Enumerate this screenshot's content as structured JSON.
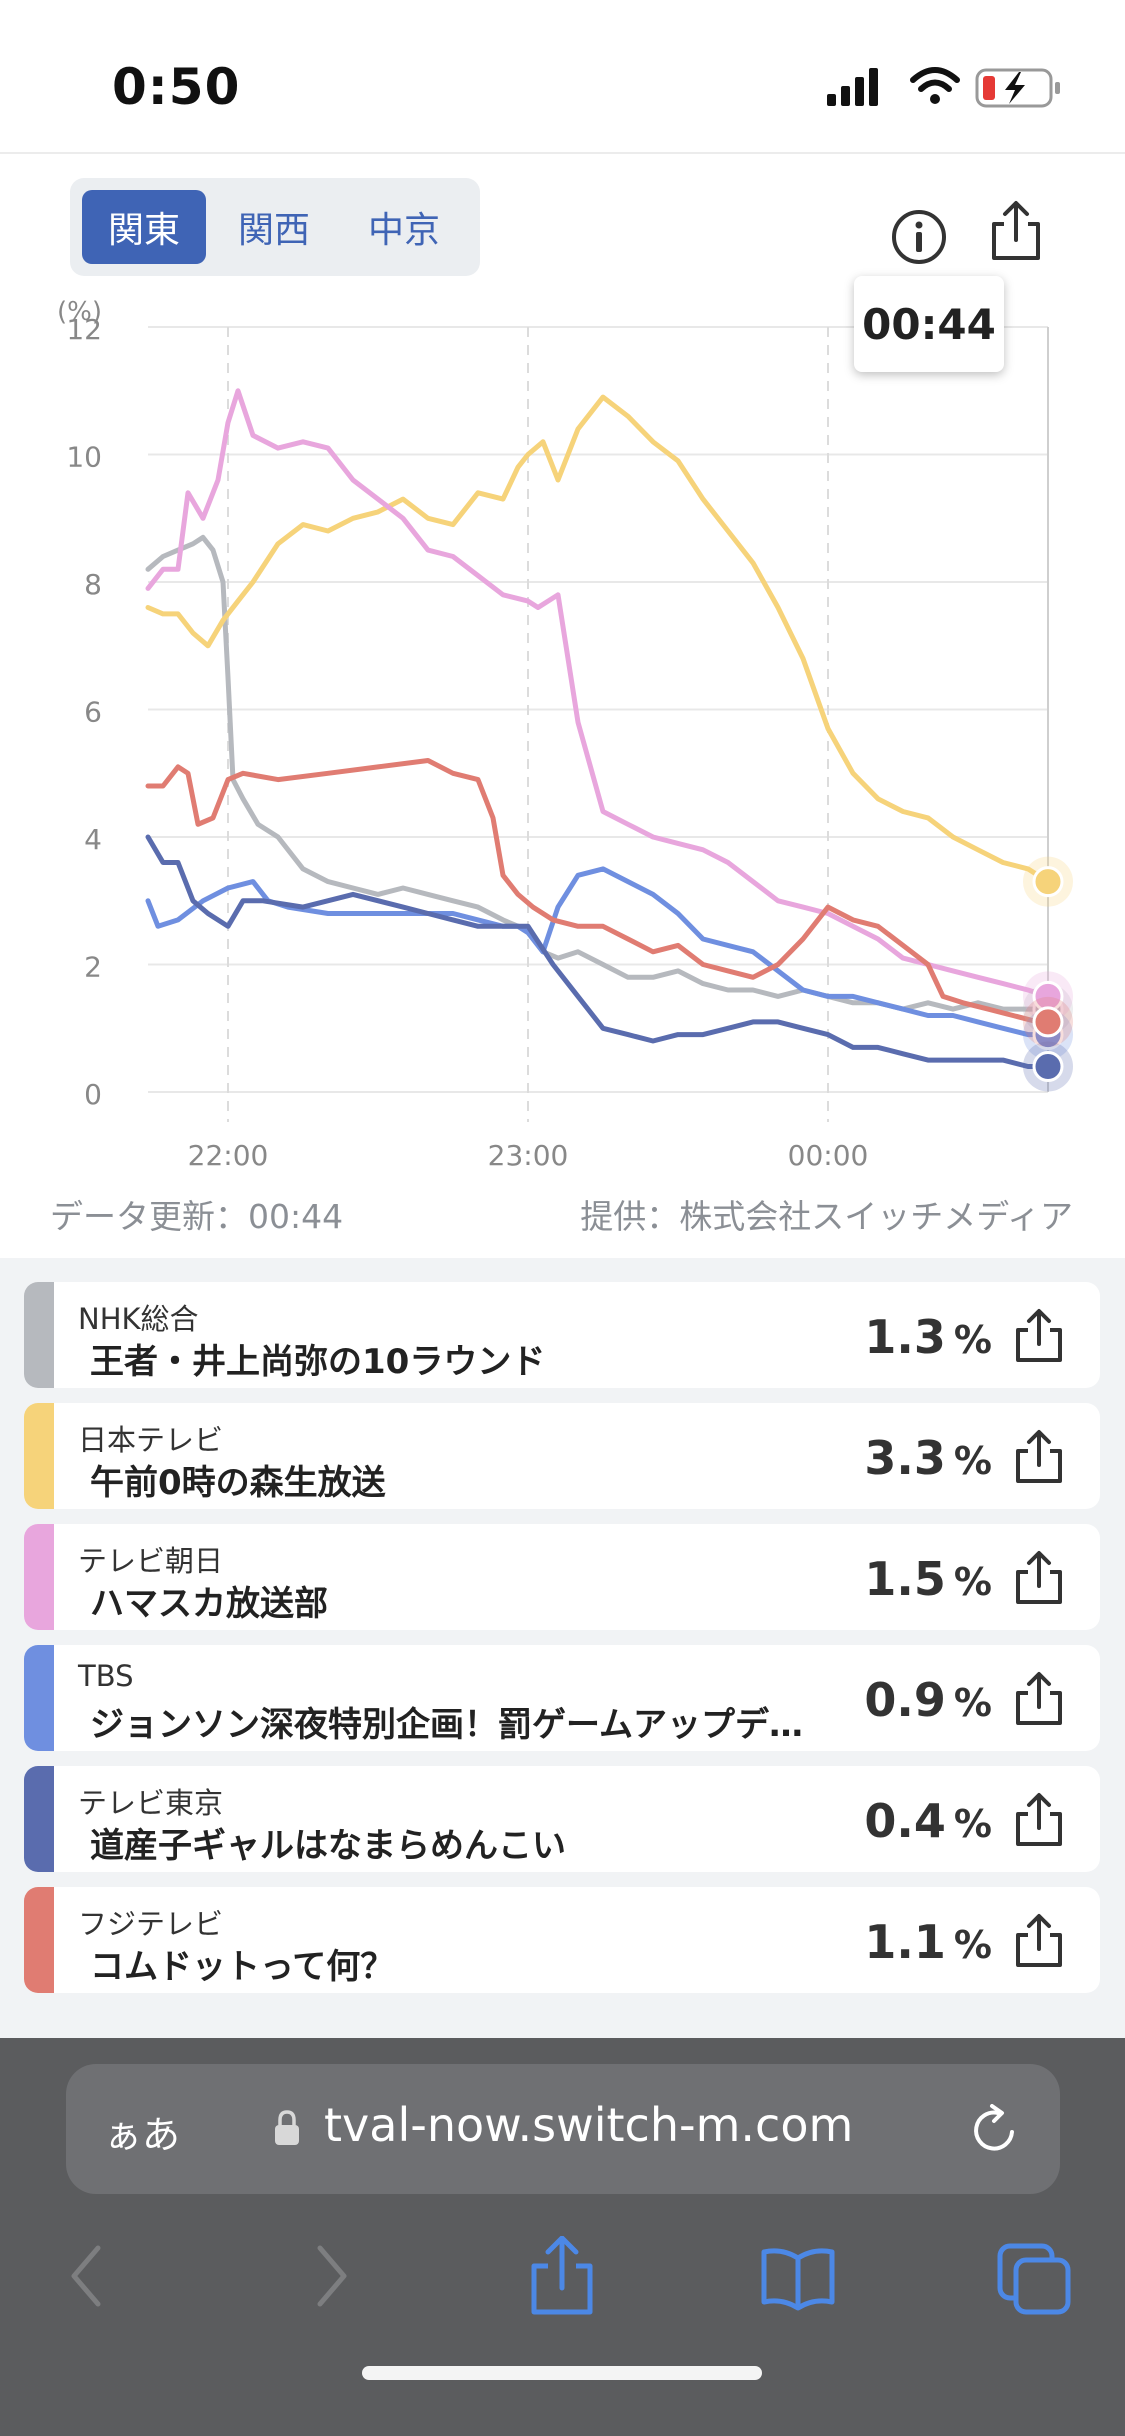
{
  "status_bar": {
    "time": "0:50"
  },
  "region_tabs": [
    {
      "label": "関東",
      "active": true
    },
    {
      "label": "関西",
      "active": false
    },
    {
      "label": "中京",
      "active": false
    }
  ],
  "chart_badge": "00:44",
  "chart_data": {
    "type": "line",
    "ylabel": "(%)",
    "ylim": [
      0,
      12
    ],
    "yticks": [
      "0",
      "2",
      "4",
      "6",
      "8",
      "10",
      "12"
    ],
    "xticks": [
      {
        "label": "22:00",
        "value": 60
      },
      {
        "label": "23:00",
        "value": 120
      },
      {
        "label": "00:00",
        "value": 180
      }
    ],
    "xrange": [
      44,
      224
    ],
    "cursor_x": 224,
    "grid": true,
    "series": [
      {
        "name": "NHK総合",
        "color": "#b6b9be",
        "points": [
          [
            44,
            8.2
          ],
          [
            47,
            8.4
          ],
          [
            50,
            8.5
          ],
          [
            53,
            8.6
          ],
          [
            55,
            8.7
          ],
          [
            57,
            8.5
          ],
          [
            59,
            8.0
          ],
          [
            60,
            6.5
          ],
          [
            61,
            4.9
          ],
          [
            63,
            4.6
          ],
          [
            66,
            4.2
          ],
          [
            70,
            4.0
          ],
          [
            75,
            3.5
          ],
          [
            80,
            3.3
          ],
          [
            85,
            3.2
          ],
          [
            90,
            3.1
          ],
          [
            95,
            3.2
          ],
          [
            100,
            3.1
          ],
          [
            105,
            3.0
          ],
          [
            110,
            2.9
          ],
          [
            115,
            2.7
          ],
          [
            118,
            2.6
          ],
          [
            120,
            2.5
          ],
          [
            123,
            2.2
          ],
          [
            126,
            2.1
          ],
          [
            130,
            2.2
          ],
          [
            135,
            2.0
          ],
          [
            140,
            1.8
          ],
          [
            145,
            1.8
          ],
          [
            150,
            1.9
          ],
          [
            155,
            1.7
          ],
          [
            160,
            1.6
          ],
          [
            165,
            1.6
          ],
          [
            170,
            1.5
          ],
          [
            175,
            1.6
          ],
          [
            180,
            1.5
          ],
          [
            185,
            1.4
          ],
          [
            190,
            1.4
          ],
          [
            195,
            1.3
          ],
          [
            200,
            1.4
          ],
          [
            205,
            1.3
          ],
          [
            210,
            1.4
          ],
          [
            215,
            1.3
          ],
          [
            220,
            1.3
          ],
          [
            224,
            1.3
          ]
        ]
      },
      {
        "name": "日本テレビ",
        "color": "#f6d37a",
        "points": [
          [
            44,
            7.6
          ],
          [
            47,
            7.5
          ],
          [
            50,
            7.5
          ],
          [
            53,
            7.2
          ],
          [
            56,
            7.0
          ],
          [
            59,
            7.4
          ],
          [
            62,
            7.7
          ],
          [
            65,
            8.0
          ],
          [
            70,
            8.6
          ],
          [
            75,
            8.9
          ],
          [
            80,
            8.8
          ],
          [
            85,
            9.0
          ],
          [
            90,
            9.1
          ],
          [
            95,
            9.3
          ],
          [
            100,
            9.0
          ],
          [
            105,
            8.9
          ],
          [
            110,
            9.4
          ],
          [
            115,
            9.3
          ],
          [
            118,
            9.8
          ],
          [
            120,
            10.0
          ],
          [
            123,
            10.2
          ],
          [
            126,
            9.6
          ],
          [
            130,
            10.4
          ],
          [
            135,
            10.9
          ],
          [
            140,
            10.6
          ],
          [
            145,
            10.2
          ],
          [
            150,
            9.9
          ],
          [
            155,
            9.3
          ],
          [
            160,
            8.8
          ],
          [
            165,
            8.3
          ],
          [
            170,
            7.6
          ],
          [
            175,
            6.8
          ],
          [
            180,
            5.7
          ],
          [
            185,
            5.0
          ],
          [
            190,
            4.6
          ],
          [
            195,
            4.4
          ],
          [
            200,
            4.3
          ],
          [
            205,
            4.0
          ],
          [
            210,
            3.8
          ],
          [
            215,
            3.6
          ],
          [
            220,
            3.5
          ],
          [
            224,
            3.3
          ]
        ]
      },
      {
        "name": "テレビ朝日",
        "color": "#e8a6dd",
        "points": [
          [
            44,
            7.9
          ],
          [
            47,
            8.2
          ],
          [
            50,
            8.2
          ],
          [
            52,
            9.4
          ],
          [
            55,
            9.0
          ],
          [
            58,
            9.6
          ],
          [
            60,
            10.5
          ],
          [
            62,
            11.0
          ],
          [
            65,
            10.3
          ],
          [
            70,
            10.1
          ],
          [
            75,
            10.2
          ],
          [
            80,
            10.1
          ],
          [
            85,
            9.6
          ],
          [
            90,
            9.3
          ],
          [
            95,
            9.0
          ],
          [
            100,
            8.5
          ],
          [
            105,
            8.4
          ],
          [
            110,
            8.1
          ],
          [
            115,
            7.8
          ],
          [
            120,
            7.7
          ],
          [
            122,
            7.6
          ],
          [
            126,
            7.8
          ],
          [
            130,
            5.8
          ],
          [
            135,
            4.4
          ],
          [
            140,
            4.2
          ],
          [
            145,
            4.0
          ],
          [
            150,
            3.9
          ],
          [
            155,
            3.8
          ],
          [
            160,
            3.6
          ],
          [
            165,
            3.3
          ],
          [
            170,
            3.0
          ],
          [
            175,
            2.9
          ],
          [
            180,
            2.8
          ],
          [
            185,
            2.6
          ],
          [
            190,
            2.4
          ],
          [
            195,
            2.1
          ],
          [
            200,
            2.0
          ],
          [
            205,
            1.9
          ],
          [
            210,
            1.8
          ],
          [
            215,
            1.7
          ],
          [
            220,
            1.6
          ],
          [
            224,
            1.5
          ]
        ]
      },
      {
        "name": "TBS",
        "color": "#6f8fe0",
        "points": [
          [
            44,
            3.0
          ],
          [
            46,
            2.6
          ],
          [
            50,
            2.7
          ],
          [
            55,
            3.0
          ],
          [
            60,
            3.2
          ],
          [
            65,
            3.3
          ],
          [
            68,
            3.0
          ],
          [
            72,
            2.9
          ],
          [
            80,
            2.8
          ],
          [
            90,
            2.8
          ],
          [
            100,
            2.8
          ],
          [
            105,
            2.8
          ],
          [
            110,
            2.7
          ],
          [
            115,
            2.6
          ],
          [
            118,
            2.6
          ],
          [
            120,
            2.5
          ],
          [
            123,
            2.2
          ],
          [
            126,
            2.9
          ],
          [
            130,
            3.4
          ],
          [
            135,
            3.5
          ],
          [
            140,
            3.3
          ],
          [
            145,
            3.1
          ],
          [
            150,
            2.8
          ],
          [
            155,
            2.4
          ],
          [
            160,
            2.3
          ],
          [
            165,
            2.2
          ],
          [
            170,
            1.9
          ],
          [
            175,
            1.6
          ],
          [
            180,
            1.5
          ],
          [
            185,
            1.5
          ],
          [
            190,
            1.4
          ],
          [
            195,
            1.3
          ],
          [
            200,
            1.2
          ],
          [
            205,
            1.2
          ],
          [
            210,
            1.1
          ],
          [
            215,
            1.0
          ],
          [
            220,
            0.9
          ],
          [
            224,
            0.9
          ]
        ]
      },
      {
        "name": "テレビ東京",
        "color": "#5a6cae",
        "points": [
          [
            44,
            4.0
          ],
          [
            47,
            3.6
          ],
          [
            50,
            3.6
          ],
          [
            53,
            3.0
          ],
          [
            56,
            2.8
          ],
          [
            60,
            2.6
          ],
          [
            63,
            3.0
          ],
          [
            67,
            3.0
          ],
          [
            75,
            2.9
          ],
          [
            85,
            3.1
          ],
          [
            95,
            2.9
          ],
          [
            100,
            2.8
          ],
          [
            105,
            2.7
          ],
          [
            110,
            2.6
          ],
          [
            115,
            2.6
          ],
          [
            120,
            2.6
          ],
          [
            125,
            2.0
          ],
          [
            130,
            1.5
          ],
          [
            135,
            1.0
          ],
          [
            140,
            0.9
          ],
          [
            145,
            0.8
          ],
          [
            150,
            0.9
          ],
          [
            155,
            0.9
          ],
          [
            160,
            1.0
          ],
          [
            165,
            1.1
          ],
          [
            170,
            1.1
          ],
          [
            175,
            1.0
          ],
          [
            180,
            0.9
          ],
          [
            185,
            0.7
          ],
          [
            190,
            0.7
          ],
          [
            195,
            0.6
          ],
          [
            200,
            0.5
          ],
          [
            205,
            0.5
          ],
          [
            210,
            0.5
          ],
          [
            215,
            0.5
          ],
          [
            220,
            0.4
          ],
          [
            224,
            0.4
          ]
        ]
      },
      {
        "name": "フジテレビ",
        "color": "#e07c72",
        "points": [
          [
            44,
            4.8
          ],
          [
            47,
            4.8
          ],
          [
            50,
            5.1
          ],
          [
            52,
            5.0
          ],
          [
            54,
            4.2
          ],
          [
            57,
            4.3
          ],
          [
            60,
            4.9
          ],
          [
            63,
            5.0
          ],
          [
            70,
            4.9
          ],
          [
            80,
            5.0
          ],
          [
            90,
            5.1
          ],
          [
            100,
            5.2
          ],
          [
            105,
            5.0
          ],
          [
            110,
            4.9
          ],
          [
            113,
            4.3
          ],
          [
            115,
            3.4
          ],
          [
            118,
            3.1
          ],
          [
            121,
            2.9
          ],
          [
            125,
            2.7
          ],
          [
            130,
            2.6
          ],
          [
            135,
            2.6
          ],
          [
            140,
            2.4
          ],
          [
            145,
            2.2
          ],
          [
            150,
            2.3
          ],
          [
            155,
            2.0
          ],
          [
            160,
            1.9
          ],
          [
            165,
            1.8
          ],
          [
            170,
            2.0
          ],
          [
            175,
            2.4
          ],
          [
            180,
            2.9
          ],
          [
            185,
            2.7
          ],
          [
            190,
            2.6
          ],
          [
            195,
            2.3
          ],
          [
            200,
            2.0
          ],
          [
            203,
            1.5
          ],
          [
            207,
            1.4
          ],
          [
            212,
            1.3
          ],
          [
            217,
            1.2
          ],
          [
            222,
            1.1
          ],
          [
            224,
            1.1
          ]
        ]
      }
    ]
  },
  "footer": {
    "updated": "データ更新：00:44",
    "provider": "提供：株式会社スイッチメディア"
  },
  "channels": [
    {
      "name": "NHK総合",
      "program": "王者・井上尚弥の10ラウンド",
      "rating": "1.3",
      "unit": "%",
      "color": "#b6b9be"
    },
    {
      "name": "日本テレビ",
      "program": "午前0時の森生放送",
      "rating": "3.3",
      "unit": "%",
      "color": "#f6d37a"
    },
    {
      "name": "テレビ朝日",
      "program": "ハマスカ放送部",
      "rating": "1.5",
      "unit": "%",
      "color": "#e8a6dd"
    },
    {
      "name": "TBS",
      "program": "ジョンソン深夜特別企画！罰ゲームアップデ…",
      "rating": "0.9",
      "unit": "%",
      "color": "#6f8fe0"
    },
    {
      "name": "テレビ東京",
      "program": "道産子ギャルはなまらめんこい",
      "rating": "0.4",
      "unit": "%",
      "color": "#5a6cae"
    },
    {
      "name": "フジテレビ",
      "program": "コムドットって何？",
      "rating": "1.1",
      "unit": "%",
      "color": "#e07c72"
    }
  ],
  "browser": {
    "aa_label": "ぁあ",
    "url": "tval-now.switch-m.com"
  }
}
